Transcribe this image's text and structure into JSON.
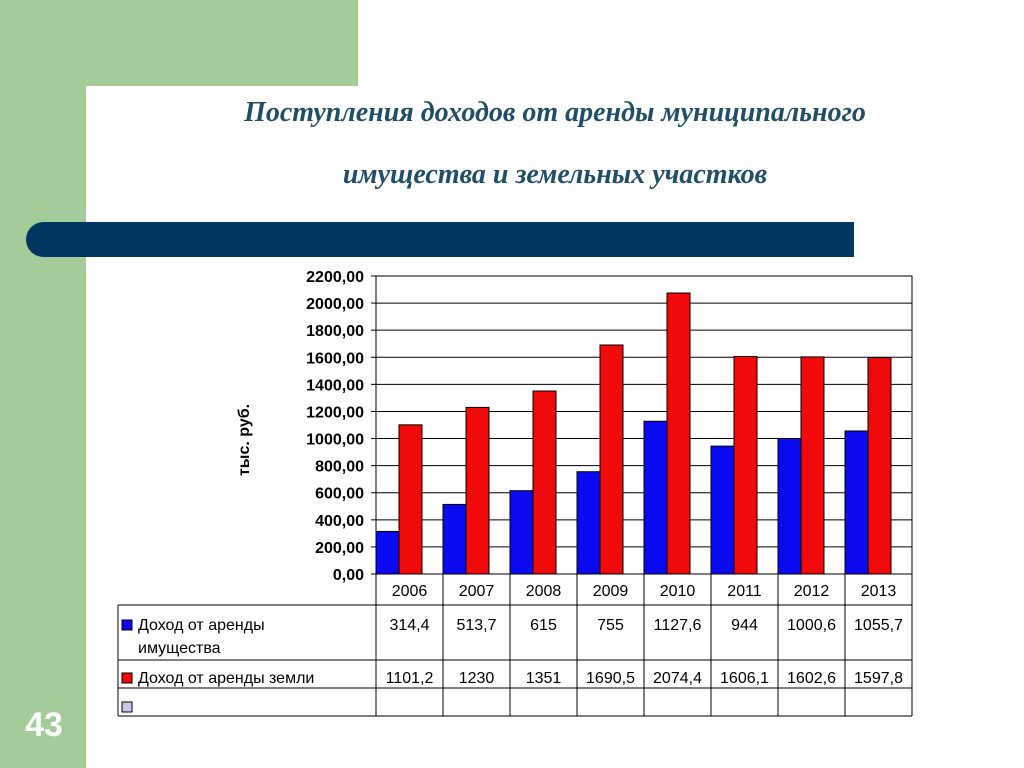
{
  "slide": {
    "number": "43",
    "title_line1": "Поступления доходов от аренды муниципального",
    "title_line2": "имущества и земельных участков"
  },
  "colors": {
    "sidebar_green": "#a3cc99",
    "bar_navy": "#00365f",
    "title_color": "#1f4e66",
    "series_blue": "#0a0af0",
    "series_red": "#f00a0a",
    "series_empty": "#c8c8f0"
  },
  "chart_data": {
    "type": "bar",
    "title": "",
    "ylabel": "тыс. руб.",
    "xlabel": "",
    "ylim": [
      0,
      2200
    ],
    "ytick_step": 200,
    "ytick_labels": [
      "0,00",
      "200,00",
      "400,00",
      "600,00",
      "800,00",
      "1000,00",
      "1200,00",
      "1400,00",
      "1600,00",
      "1800,00",
      "2000,00",
      "2200,00"
    ],
    "grid": true,
    "legend": "data-table",
    "categories": [
      "2006",
      "2007",
      "2008",
      "2009",
      "2010",
      "2011",
      "2012",
      "2013"
    ],
    "series": [
      {
        "name": "Доход от аренды имущества",
        "name_lines": [
          "Доход от аренды",
          "имущества"
        ],
        "color": "#0a0af0",
        "values": [
          314.4,
          513.7,
          615,
          755,
          1127.6,
          944,
          1000.6,
          1055.7
        ],
        "labels": [
          "314,4",
          "513,7",
          "615",
          "755",
          "1127,6",
          "944",
          "1000,6",
          "1055,7"
        ]
      },
      {
        "name": "Доход от аренды земли",
        "name_lines": [
          "Доход от аренды земли"
        ],
        "color": "#f00a0a",
        "values": [
          1101.2,
          1230,
          1351,
          1690.5,
          2074.4,
          1606.1,
          1602.6,
          1597.8
        ],
        "labels": [
          "1101,2",
          "1230",
          "1351",
          "1690,5",
          "2074,4",
          "1606,1",
          "1602,6",
          "1597,8"
        ]
      }
    ]
  }
}
